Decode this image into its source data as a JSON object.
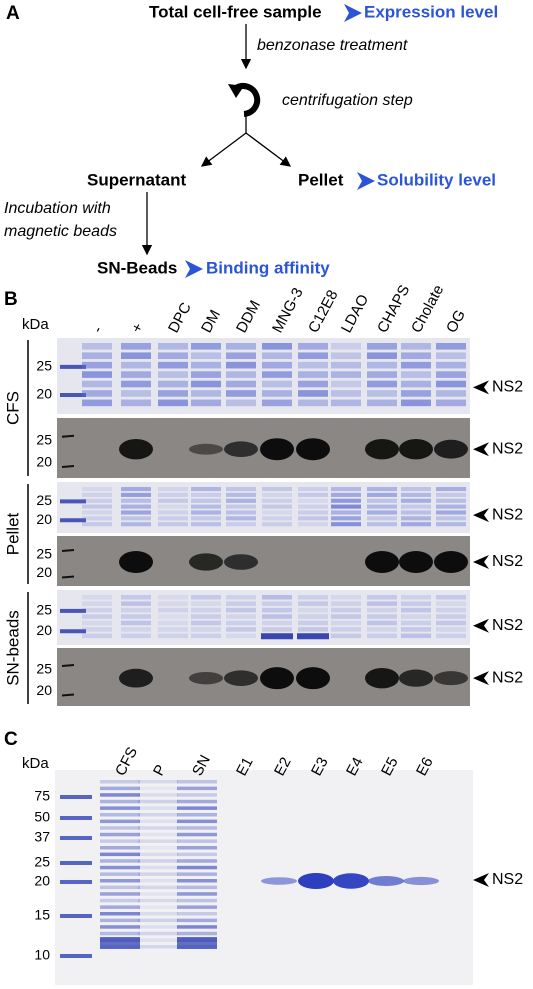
{
  "panel_a": {
    "label": "A",
    "steps": {
      "total": "Total cell-free sample",
      "expression": "Expression level",
      "benzonase": "benzonase treatment",
      "centrifugation": "centrifugation step",
      "supernatant": "Supernatant",
      "pellet": "Pellet",
      "solubility": "Solubility level",
      "incubation": [
        "Incubation with",
        "magnetic beads"
      ],
      "sn_beads": "SN-Beads",
      "binding": "Binding affinity"
    }
  },
  "panel_b": {
    "label": "B",
    "kda": "kDa",
    "lanes": [
      "-",
      "+",
      "DPC",
      "DM",
      "DDM",
      "MNG-3",
      "C12E8",
      "LDAO",
      "CHAPS",
      "Cholate",
      "OG"
    ],
    "groups": [
      {
        "name": "CFS",
        "blots": [
          {
            "markers": [
              "25",
              "20"
            ],
            "target": "NS2"
          },
          {
            "markers": [
              "25",
              "20"
            ],
            "target": "NS2"
          }
        ]
      },
      {
        "name": "Pellet",
        "blots": [
          {
            "markers": [
              "25",
              "20"
            ],
            "target": "NS2"
          },
          {
            "markers": [
              "25",
              "20"
            ],
            "target": "NS2"
          }
        ]
      },
      {
        "name": "SN-beads",
        "blots": [
          {
            "markers": [
              "25",
              "20"
            ],
            "target": "NS2"
          },
          {
            "markers": [
              "25",
              "20"
            ],
            "target": "NS2"
          }
        ]
      }
    ]
  },
  "panel_c": {
    "label": "C",
    "kda": "kDa",
    "markers": [
      "75",
      "50",
      "37",
      "25",
      "20",
      "15",
      "10"
    ],
    "lanes": [
      "CFS",
      "P",
      "SN",
      "E1",
      "E2",
      "E3",
      "E4",
      "E5",
      "E6"
    ],
    "target": "NS2"
  }
}
